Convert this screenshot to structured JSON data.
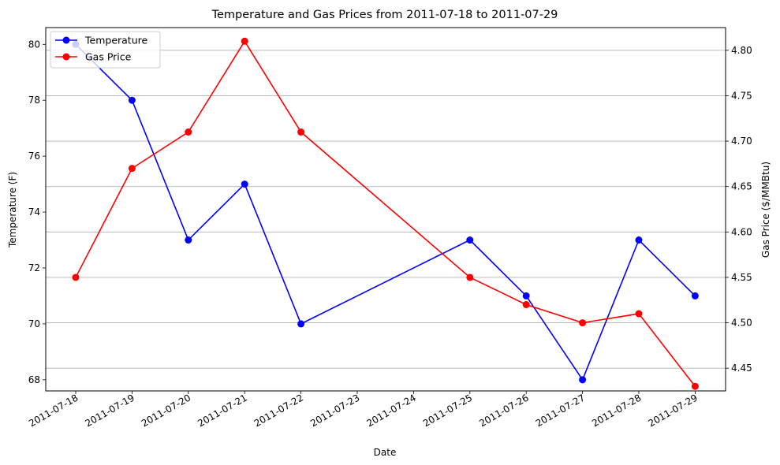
{
  "chart_data": {
    "type": "line",
    "title": "Temperature and Gas Prices from 2011-07-18 to 2011-07-29",
    "xlabel": "Date",
    "ylabel_left": "Temperature (F)",
    "ylabel_right": "Gas Price ($/MMBtu)",
    "x_ticks": [
      "2011-07-18",
      "2011-07-19",
      "2011-07-20",
      "2011-07-21",
      "2011-07-22",
      "2011-07-23",
      "2011-07-24",
      "2011-07-25",
      "2011-07-26",
      "2011-07-27",
      "2011-07-28",
      "2011-07-29"
    ],
    "ylim_left": [
      67.6,
      80.6
    ],
    "ylim_right": [
      4.425,
      4.825
    ],
    "yticks_left": [
      68,
      70,
      72,
      74,
      76,
      78,
      80
    ],
    "yticks_right": [
      4.45,
      4.5,
      4.55,
      4.6,
      4.65,
      4.7,
      4.75,
      4.8
    ],
    "grid": "right-axis horizontal",
    "legend_placement": "top-left",
    "series": [
      {
        "name": "Temperature",
        "axis": "left",
        "color": "#0000ff",
        "x": [
          "2011-07-18",
          "2011-07-19",
          "2011-07-20",
          "2011-07-21",
          "2011-07-22",
          "2011-07-25",
          "2011-07-26",
          "2011-07-27",
          "2011-07-28",
          "2011-07-29"
        ],
        "values": [
          80,
          78,
          73,
          75,
          70,
          73,
          71,
          68,
          73,
          71
        ]
      },
      {
        "name": "Gas Price",
        "axis": "right",
        "color": "#ff0000",
        "x": [
          "2011-07-18",
          "2011-07-19",
          "2011-07-20",
          "2011-07-21",
          "2011-07-22",
          "2011-07-25",
          "2011-07-26",
          "2011-07-27",
          "2011-07-28",
          "2011-07-29"
        ],
        "values": [
          4.55,
          4.67,
          4.71,
          4.81,
          4.71,
          4.55,
          4.52,
          4.5,
          4.51,
          4.43
        ]
      }
    ]
  }
}
